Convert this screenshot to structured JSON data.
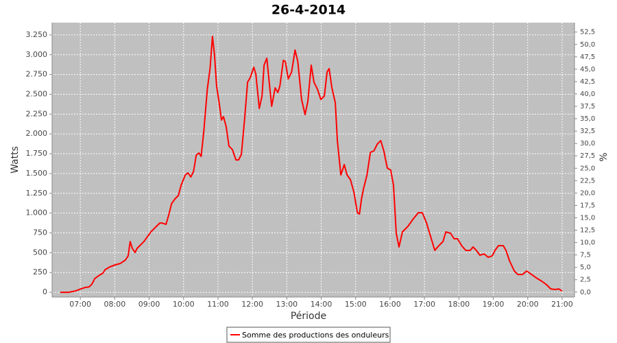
{
  "chart_data": {
    "type": "line",
    "title": "26-4-2014",
    "x_label": "Période",
    "y_label": "Watts",
    "y2_label": "%",
    "grid": true,
    "legend": "bottom",
    "xlim": [
      6.18,
      21.36
    ],
    "xticks": [
      {
        "value": 7,
        "label": "07:00"
      },
      {
        "value": 8,
        "label": "08:00"
      },
      {
        "value": 9,
        "label": "09:00"
      },
      {
        "value": 10,
        "label": "10:00"
      },
      {
        "value": 11,
        "label": "11:00"
      },
      {
        "value": 12,
        "label": "12:00"
      },
      {
        "value": 13,
        "label": "13:00"
      },
      {
        "value": 14,
        "label": "14:00"
      },
      {
        "value": 15,
        "label": "15:00"
      },
      {
        "value": 16,
        "label": "16:00"
      },
      {
        "value": 17,
        "label": "17:00"
      },
      {
        "value": 18,
        "label": "18:00"
      },
      {
        "value": 19,
        "label": "19:00"
      },
      {
        "value": 20,
        "label": "20:00"
      },
      {
        "value": 21,
        "label": "21:00"
      }
    ],
    "ylim": [
      -60,
      3405
    ],
    "yticks": [
      0,
      250,
      500,
      750,
      {
        "value": 1000,
        "label": "1.000"
      },
      {
        "value": 1250,
        "label": "1.250"
      },
      {
        "value": 1500,
        "label": "1.500"
      },
      {
        "value": 1750,
        "label": "1.750"
      },
      {
        "value": 2000,
        "label": "2.000"
      },
      {
        "value": 2250,
        "label": "2.250"
      },
      {
        "value": 2500,
        "label": "2.500"
      },
      {
        "value": 2750,
        "label": "2.750"
      },
      {
        "value": 3000,
        "label": "3.000"
      },
      {
        "value": 3250,
        "label": "3.250"
      }
    ],
    "y2lim": [
      -1.0,
      54.4
    ],
    "y2ticks": [
      {
        "value": 0,
        "label": "0,0"
      },
      {
        "value": 2.5,
        "label": "2,5"
      },
      {
        "value": 5,
        "label": "5,0"
      },
      {
        "value": 7.5,
        "label": "7,5"
      },
      {
        "value": 10,
        "label": "10,0"
      },
      {
        "value": 12.5,
        "label": "12,5"
      },
      {
        "value": 15,
        "label": "15,0"
      },
      {
        "value": 17.5,
        "label": "17,5"
      },
      {
        "value": 20,
        "label": "20,0"
      },
      {
        "value": 22.5,
        "label": "22,5"
      },
      {
        "value": 25,
        "label": "25,0"
      },
      {
        "value": 27.5,
        "label": "27,5"
      },
      {
        "value": 30,
        "label": "30,0"
      },
      {
        "value": 32.5,
        "label": "32,5"
      },
      {
        "value": 35,
        "label": "35,0"
      },
      {
        "value": 37.5,
        "label": "37,5"
      },
      {
        "value": 40,
        "label": "40,0"
      },
      {
        "value": 42.5,
        "label": "42,5"
      },
      {
        "value": 45,
        "label": "45,0"
      },
      {
        "value": 47.5,
        "label": "47,5"
      },
      {
        "value": 50,
        "label": "50,0"
      },
      {
        "value": 52.5,
        "label": "52,5"
      }
    ],
    "x": [
      6.42,
      6.66,
      6.86,
      7.02,
      7.14,
      7.26,
      7.34,
      7.42,
      7.56,
      7.66,
      7.72,
      7.86,
      8.02,
      8.16,
      8.31,
      8.39,
      8.45,
      8.51,
      8.59,
      8.65,
      8.85,
      9.05,
      9.21,
      9.31,
      9.37,
      9.49,
      9.57,
      9.65,
      9.75,
      9.85,
      9.93,
      10.05,
      10.13,
      10.21,
      10.29,
      10.37,
      10.45,
      10.51,
      10.59,
      10.69,
      10.77,
      10.84,
      10.9,
      10.96,
      11.04,
      11.1,
      11.16,
      11.24,
      11.32,
      11.42,
      11.52,
      11.6,
      11.68,
      11.78,
      11.86,
      11.94,
      12.04,
      12.1,
      12.2,
      12.28,
      12.34,
      12.42,
      12.48,
      12.56,
      12.66,
      12.74,
      12.8,
      12.9,
      12.96,
      13.04,
      13.14,
      13.24,
      13.32,
      13.43,
      13.53,
      13.61,
      13.71,
      13.79,
      13.89,
      13.99,
      14.09,
      14.17,
      14.23,
      14.31,
      14.41,
      14.47,
      14.57,
      14.67,
      14.75,
      14.85,
      14.95,
      15.05,
      15.11,
      15.17,
      15.23,
      15.33,
      15.43,
      15.53,
      15.63,
      15.73,
      15.82,
      15.92,
      16.02,
      16.1,
      16.18,
      16.26,
      16.36,
      16.52,
      16.66,
      16.82,
      16.94,
      17.06,
      17.18,
      17.3,
      17.42,
      17.54,
      17.62,
      17.76,
      17.86,
      17.96,
      18.08,
      18.2,
      18.33,
      18.41,
      18.51,
      18.61,
      18.73,
      18.85,
      18.97,
      19.05,
      19.15,
      19.29,
      19.37,
      19.47,
      19.61,
      19.71,
      19.85,
      19.97,
      20.11,
      20.25,
      20.41,
      20.55,
      20.67,
      20.8,
      20.9,
      21.0
    ],
    "series": [
      {
        "name": "Somme des productions des onduleurs",
        "color": "#ff0000",
        "values": [
          0,
          0,
          17,
          43,
          60,
          69,
          104,
          173,
          217,
          243,
          286,
          321,
          347,
          364,
          407,
          459,
          641,
          555,
          503,
          555,
          641,
          763,
          832,
          875,
          875,
          858,
          979,
          1118,
          1179,
          1222,
          1352,
          1482,
          1508,
          1456,
          1525,
          1733,
          1759,
          1716,
          2045,
          2565,
          2825,
          3232,
          2998,
          2608,
          2374,
          2175,
          2218,
          2088,
          1846,
          1802,
          1672,
          1672,
          1742,
          2218,
          2652,
          2712,
          2842,
          2755,
          2322,
          2478,
          2868,
          2955,
          2695,
          2348,
          2582,
          2522,
          2608,
          2929,
          2912,
          2695,
          2782,
          3059,
          2912,
          2435,
          2244,
          2409,
          2868,
          2652,
          2565,
          2435,
          2478,
          2782,
          2825,
          2582,
          2392,
          1915,
          1482,
          1612,
          1482,
          1421,
          1265,
          1005,
          988,
          1179,
          1309,
          1482,
          1768,
          1785,
          1872,
          1915,
          1785,
          1569,
          1543,
          1352,
          745,
          572,
          763,
          832,
          919,
          1005,
          1005,
          875,
          702,
          529,
          589,
          641,
          763,
          745,
          676,
          676,
          589,
          529,
          529,
          572,
          529,
          468,
          485,
          442,
          459,
          529,
          589,
          589,
          529,
          399,
          269,
          225,
          225,
          269,
          225,
          182,
          139,
          95,
          43,
          35,
          43,
          17
        ]
      }
    ]
  }
}
